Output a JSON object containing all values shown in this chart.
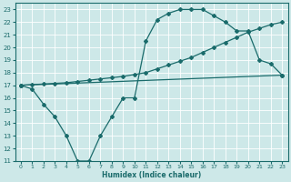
{
  "title": "",
  "xlabel": "Humidex (Indice chaleur)",
  "ylim": [
    11,
    23.5
  ],
  "xlim": [
    -0.5,
    23.5
  ],
  "yticks": [
    11,
    12,
    13,
    14,
    15,
    16,
    17,
    18,
    19,
    20,
    21,
    22,
    23
  ],
  "xticks": [
    0,
    1,
    2,
    3,
    4,
    5,
    6,
    7,
    8,
    9,
    10,
    11,
    12,
    13,
    14,
    15,
    16,
    17,
    18,
    19,
    20,
    21,
    22,
    23
  ],
  "bg_color": "#cde8e8",
  "grid_color": "#b0d4d4",
  "line_color": "#1a6b6b",
  "line1_x": [
    0,
    1,
    2,
    3,
    4,
    5,
    6,
    7,
    8,
    9,
    10,
    11,
    12,
    13,
    14,
    15,
    16,
    17,
    18,
    19,
    20,
    21,
    22,
    23
  ],
  "line1_y": [
    17.0,
    16.7,
    15.5,
    14.5,
    13.0,
    11.0,
    11.0,
    13.0,
    14.5,
    16.0,
    16.0,
    20.5,
    22.2,
    22.7,
    23.0,
    23.0,
    23.0,
    22.5,
    22.0,
    21.3,
    21.3,
    19.0,
    18.7,
    17.8
  ],
  "line2_x": [
    0,
    23
  ],
  "line2_y": [
    17.0,
    17.8
  ],
  "line3_x": [
    0,
    1,
    2,
    3,
    4,
    5,
    6,
    7,
    8,
    9,
    10,
    11,
    12,
    13,
    14,
    15,
    16,
    17,
    18,
    19,
    20,
    21,
    22,
    23
  ],
  "line3_y": [
    17.0,
    17.05,
    17.1,
    17.15,
    17.2,
    17.3,
    17.4,
    17.5,
    17.6,
    17.7,
    17.85,
    18.0,
    18.3,
    18.6,
    18.9,
    19.2,
    19.6,
    20.0,
    20.4,
    20.8,
    21.2,
    21.5,
    21.8,
    22.0
  ],
  "figsize": [
    3.2,
    2.0
  ],
  "dpi": 100
}
